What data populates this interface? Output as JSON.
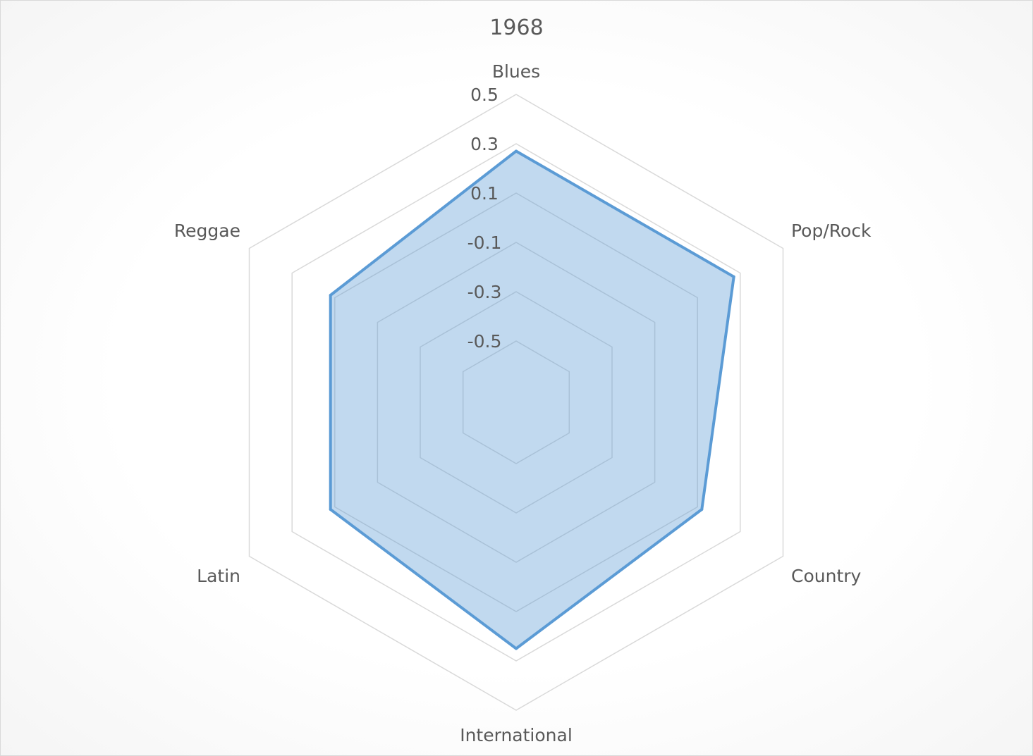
{
  "chart_data": {
    "type": "radar",
    "title": "1968",
    "categories": [
      "Blues",
      "Pop/Rock",
      "Country",
      "International",
      "Latin",
      "Reggae"
    ],
    "series": [
      {
        "values": [
          0.27,
          0.27,
          0.12,
          0.25,
          0.12,
          0.12
        ]
      }
    ],
    "rlim": [
      -0.5,
      0.5
    ],
    "ticks": [
      "0.5",
      "0.3",
      "0.1",
      "-0.1",
      "-0.3",
      "-0.5"
    ],
    "tick_values": [
      0.5,
      0.3,
      0.1,
      -0.1,
      -0.3,
      -0.5
    ],
    "grid": true,
    "legend": "none",
    "colors": {
      "series": "#5b9bd5",
      "grid": "#d9d9d9",
      "text": "#595959"
    }
  }
}
